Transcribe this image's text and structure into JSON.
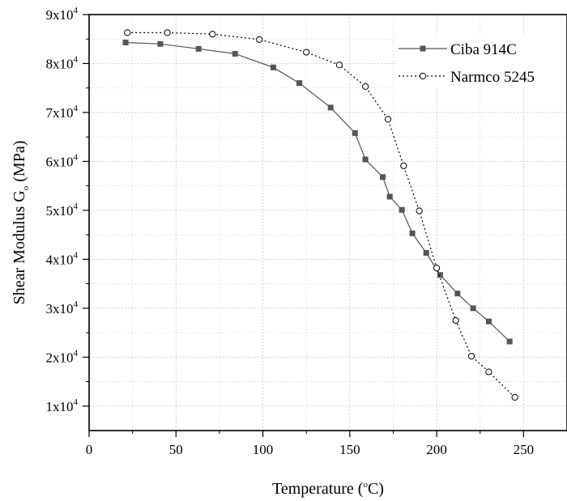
{
  "chart_data": {
    "type": "line",
    "xlabel": "Temperature (°C)",
    "xlabel_parts": {
      "before": "Temperature (",
      "sup": "o",
      "after": "C)"
    },
    "ylabel": "Shear Modulus G_o (MPa)",
    "ylabel_parts": {
      "before": "Shear Modulus G",
      "sub": "o",
      "after": " (MPa)"
    },
    "xlim": [
      0,
      275
    ],
    "ylim": [
      5000,
      90000
    ],
    "x_ticks": [
      0,
      50,
      100,
      150,
      200,
      250
    ],
    "x_tick_labels": [
      "0",
      "50",
      "100",
      "150",
      "200",
      "250"
    ],
    "y_ticks": [
      10000,
      20000,
      30000,
      40000,
      50000,
      60000,
      70000,
      80000,
      90000
    ],
    "y_tick_labels": [
      {
        "mantissa": "1x10",
        "exp": "4"
      },
      {
        "mantissa": "2x10",
        "exp": "4"
      },
      {
        "mantissa": "3x10",
        "exp": "4"
      },
      {
        "mantissa": "4x10",
        "exp": "4"
      },
      {
        "mantissa": "5x10",
        "exp": "4"
      },
      {
        "mantissa": "6x10",
        "exp": "4"
      },
      {
        "mantissa": "7x10",
        "exp": "4"
      },
      {
        "mantissa": "8x10",
        "exp": "4"
      },
      {
        "mantissa": "9x10",
        "exp": "4"
      }
    ],
    "grid": true,
    "legend_position": "top-right",
    "series": [
      {
        "name": "Ciba 914C",
        "marker": "square",
        "line": "solid",
        "color": "#555555",
        "x": [
          21,
          41,
          63,
          84,
          106,
          121,
          139,
          153,
          159,
          169,
          173,
          180,
          186,
          194,
          202,
          212,
          221,
          230,
          242
        ],
        "y": [
          84300,
          84000,
          83000,
          82000,
          79200,
          76000,
          71000,
          65800,
          60400,
          56800,
          52800,
          50100,
          45300,
          41300,
          36800,
          33000,
          30000,
          27300,
          23200
        ]
      },
      {
        "name": "Narmco 5245",
        "marker": "circle",
        "line": "dotted",
        "color": "#000000",
        "x": [
          22,
          45,
          71,
          98,
          125,
          144,
          159,
          172,
          181,
          190,
          200,
          211,
          220,
          230,
          245
        ],
        "y": [
          86300,
          86300,
          86000,
          84900,
          82300,
          79700,
          75300,
          68600,
          59100,
          49900,
          38200,
          27500,
          20200,
          17000,
          11800
        ]
      }
    ]
  }
}
